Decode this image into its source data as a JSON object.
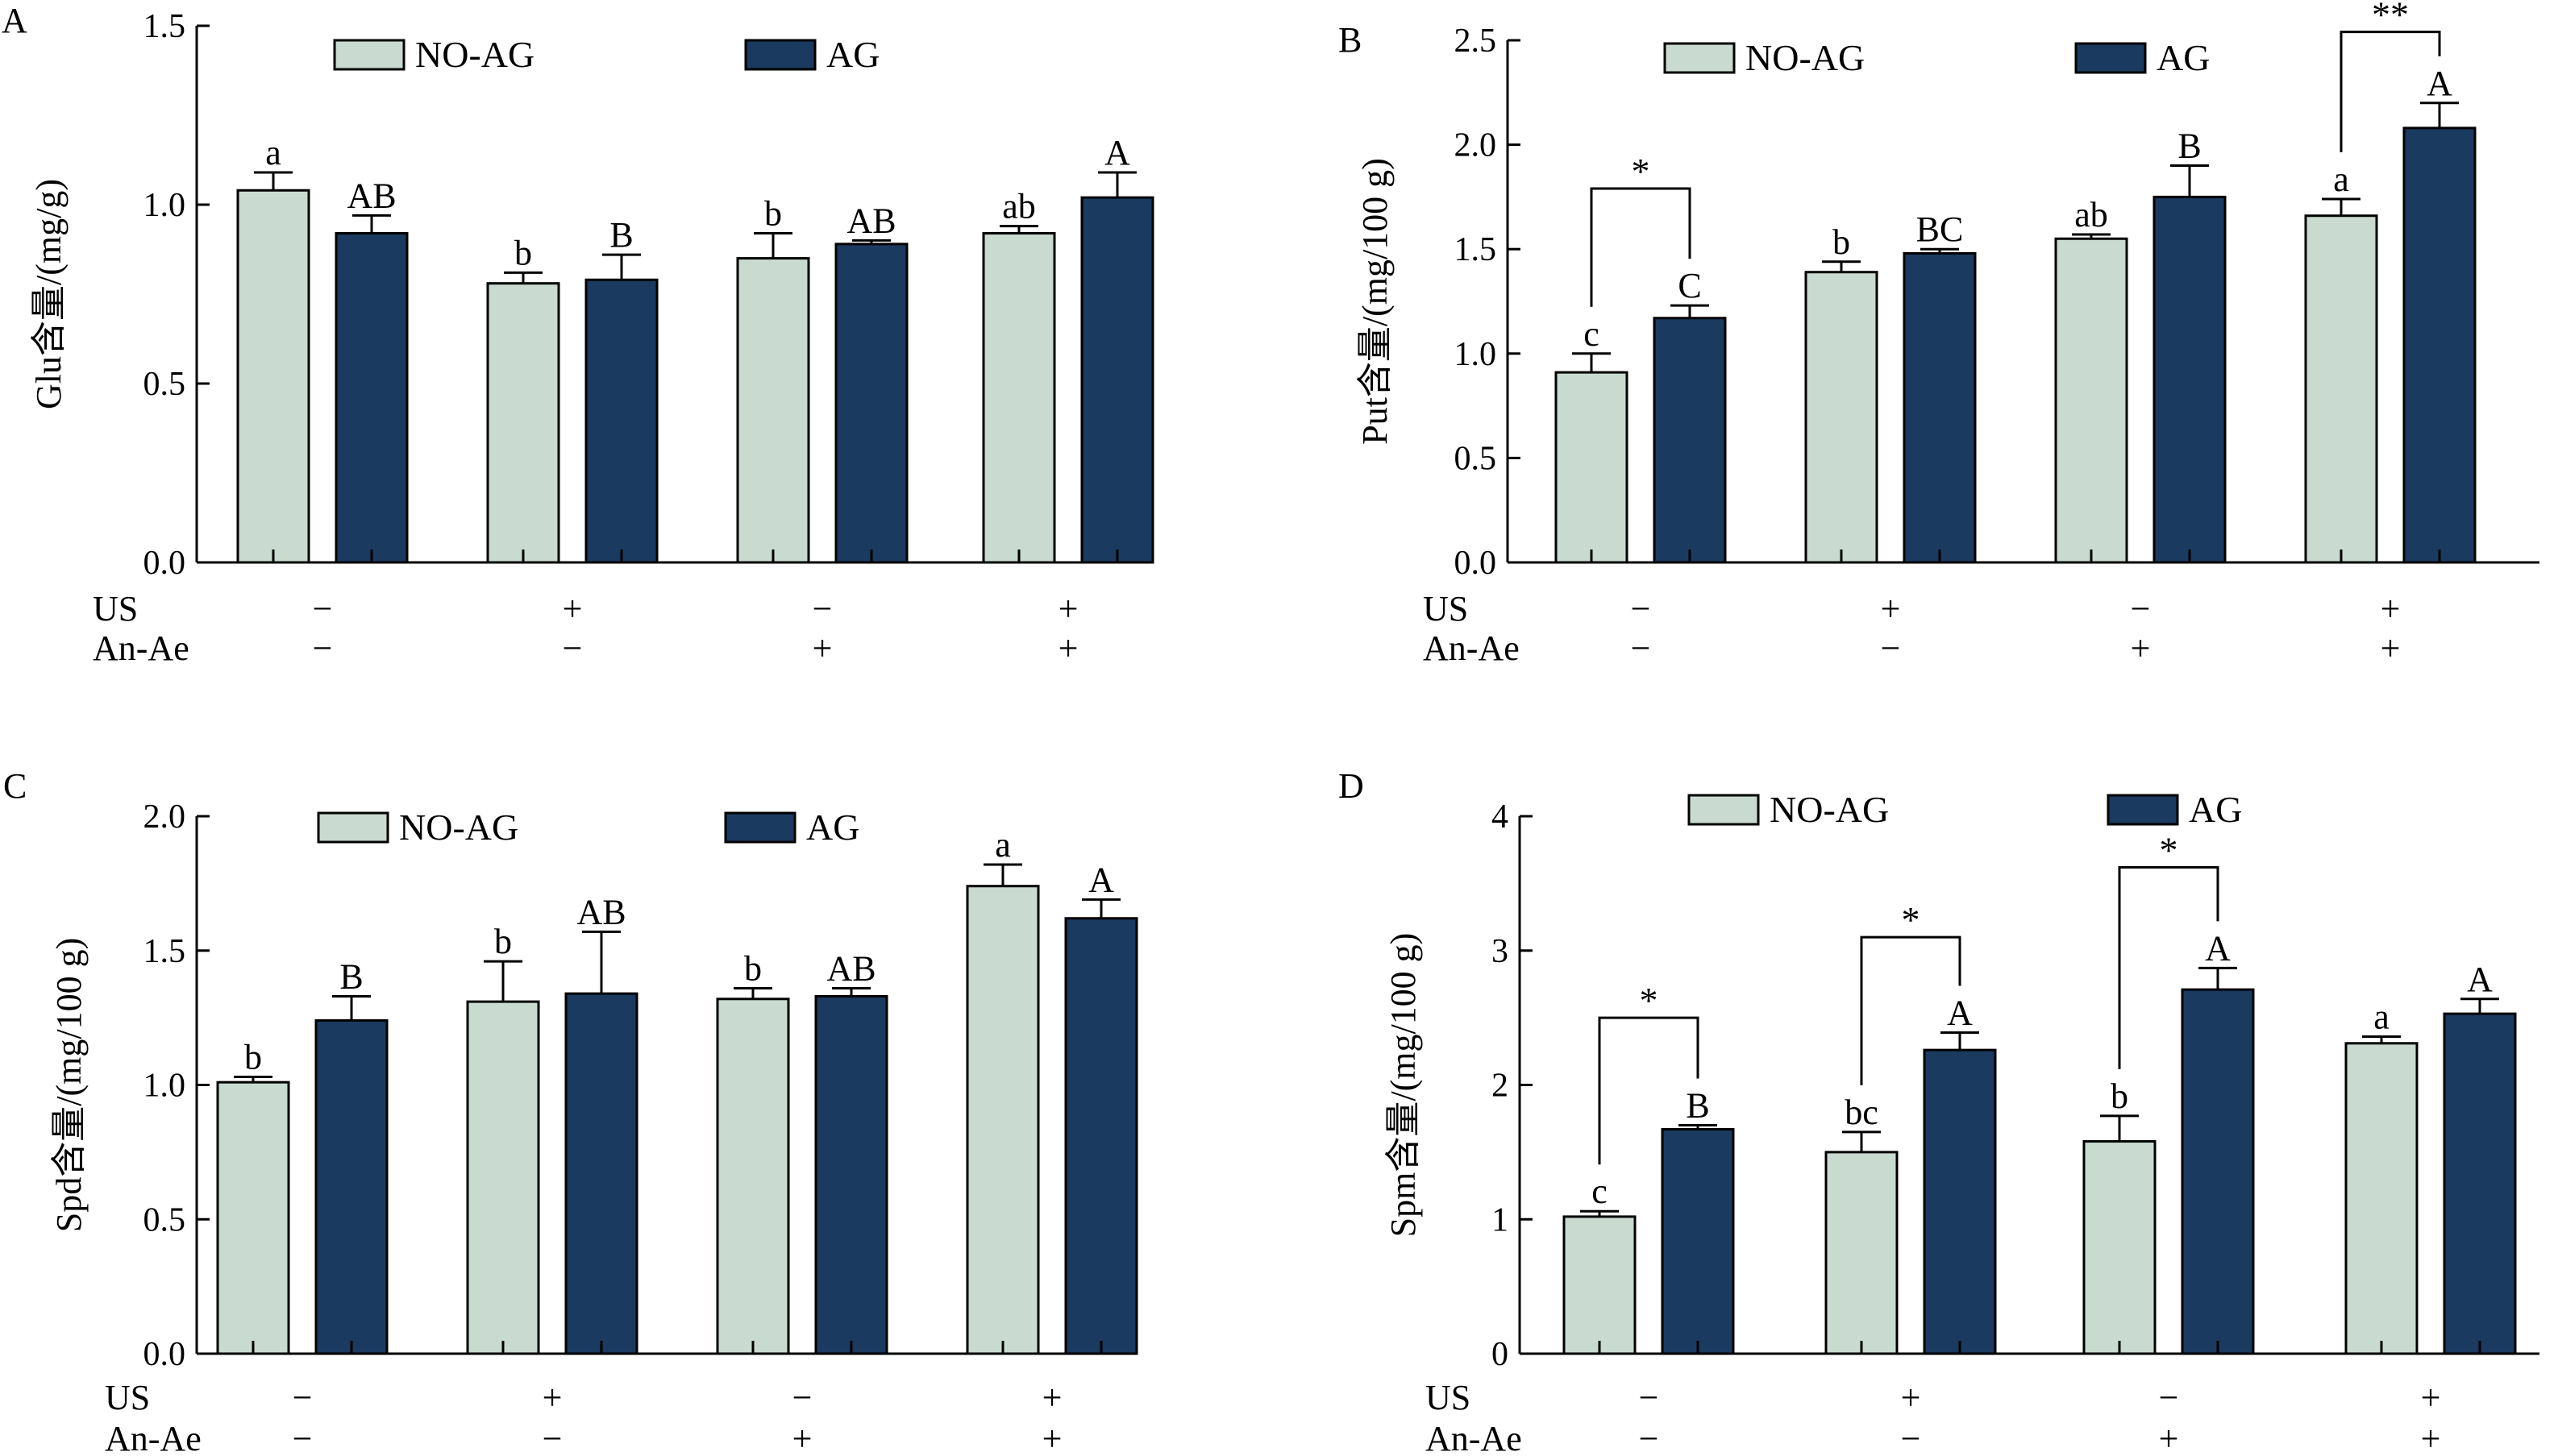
{
  "colors": {
    "no_ag": "#c9dbd0",
    "ag": "#1b3a60",
    "line": "#000000"
  },
  "legend": {
    "no_ag": "NO-AG",
    "ag": "AG"
  },
  "factors": {
    "us_label": "US",
    "anae_label": "An-Ae",
    "us": [
      "−",
      "+",
      "−",
      "+"
    ],
    "anae": [
      "−",
      "−",
      "+",
      "+"
    ]
  },
  "chart_data": [
    {
      "type": "bar",
      "panel": "A",
      "ylabel": "Glu含量/(mg/g)",
      "ylim": [
        0,
        1.5
      ],
      "yticks": [
        "0.0",
        "0.5",
        "1.0",
        "1.5"
      ],
      "tick_values": [
        0,
        0.5,
        1.0,
        1.5
      ],
      "legend_position": "top",
      "series": [
        {
          "name": "NO-AG",
          "values": [
            1.04,
            0.78,
            0.85,
            0.92
          ],
          "errors": [
            0.05,
            0.03,
            0.07,
            0.02
          ],
          "letters": [
            "a",
            "b",
            "b",
            "ab"
          ]
        },
        {
          "name": "AG",
          "values": [
            0.92,
            0.79,
            0.89,
            1.02
          ],
          "errors": [
            0.05,
            0.07,
            0.01,
            0.07
          ],
          "letters": [
            "AB",
            "B",
            "AB",
            "A"
          ]
        }
      ],
      "significance": []
    },
    {
      "type": "bar",
      "panel": "B",
      "ylabel": "Put含量/(mg/100 g)",
      "ylim": [
        0,
        2.5
      ],
      "yticks": [
        "0.0",
        "0.5",
        "1.0",
        "1.5",
        "2.0",
        "2.5"
      ],
      "tick_values": [
        0,
        0.5,
        1.0,
        1.5,
        2.0,
        2.5
      ],
      "legend_position": "top",
      "series": [
        {
          "name": "NO-AG",
          "values": [
            0.91,
            1.39,
            1.55,
            1.66
          ],
          "errors": [
            0.09,
            0.05,
            0.02,
            0.08
          ],
          "letters": [
            "c",
            "b",
            "ab",
            "a"
          ]
        },
        {
          "name": "AG",
          "values": [
            1.17,
            1.48,
            1.75,
            2.08
          ],
          "errors": [
            0.06,
            0.02,
            0.15,
            0.12
          ],
          "letters": [
            "C",
            "BC",
            "B",
            "A"
          ]
        }
      ],
      "significance": [
        {
          "group": 0,
          "label": "*",
          "y": 1.79
        },
        {
          "group": 3,
          "label": "**",
          "y": 2.54
        }
      ]
    },
    {
      "type": "bar",
      "panel": "C",
      "ylabel": "Spd含量/(mg/100 g)",
      "ylim": [
        0,
        2.0
      ],
      "yticks": [
        "0.0",
        "0.5",
        "1.0",
        "1.5",
        "2.0"
      ],
      "tick_values": [
        0,
        0.5,
        1.0,
        1.5,
        2.0
      ],
      "legend_position": "top",
      "series": [
        {
          "name": "NO-AG",
          "values": [
            1.01,
            1.31,
            1.32,
            1.74
          ],
          "errors": [
            0.02,
            0.15,
            0.04,
            0.08
          ],
          "letters": [
            "b",
            "b",
            "b",
            "a"
          ]
        },
        {
          "name": "AG",
          "values": [
            1.24,
            1.34,
            1.33,
            1.62
          ],
          "errors": [
            0.09,
            0.23,
            0.03,
            0.07
          ],
          "letters": [
            "B",
            "AB",
            "AB",
            "A"
          ]
        }
      ],
      "significance": []
    },
    {
      "type": "bar",
      "panel": "D",
      "ylabel": "Spm含量/(mg/100 g)",
      "ylim": [
        0,
        4
      ],
      "yticks": [
        "0",
        "1",
        "2",
        "3",
        "4"
      ],
      "tick_values": [
        0,
        1,
        2,
        3,
        4
      ],
      "legend_position": "top",
      "series": [
        {
          "name": "NO-AG",
          "values": [
            1.02,
            1.5,
            1.58,
            2.31
          ],
          "errors": [
            0.04,
            0.15,
            0.19,
            0.05
          ],
          "letters": [
            "c",
            "bc",
            "b",
            "a"
          ]
        },
        {
          "name": "AG",
          "values": [
            1.67,
            2.26,
            2.71,
            2.53
          ],
          "errors": [
            0.03,
            0.13,
            0.16,
            0.11
          ],
          "letters": [
            "B",
            "A",
            "A",
            "A"
          ]
        }
      ],
      "significance": [
        {
          "group": 0,
          "label": "*",
          "y": 2.5
        },
        {
          "group": 1,
          "label": "*",
          "y": 3.1
        },
        {
          "group": 2,
          "label": "*",
          "y": 3.62
        }
      ]
    }
  ]
}
